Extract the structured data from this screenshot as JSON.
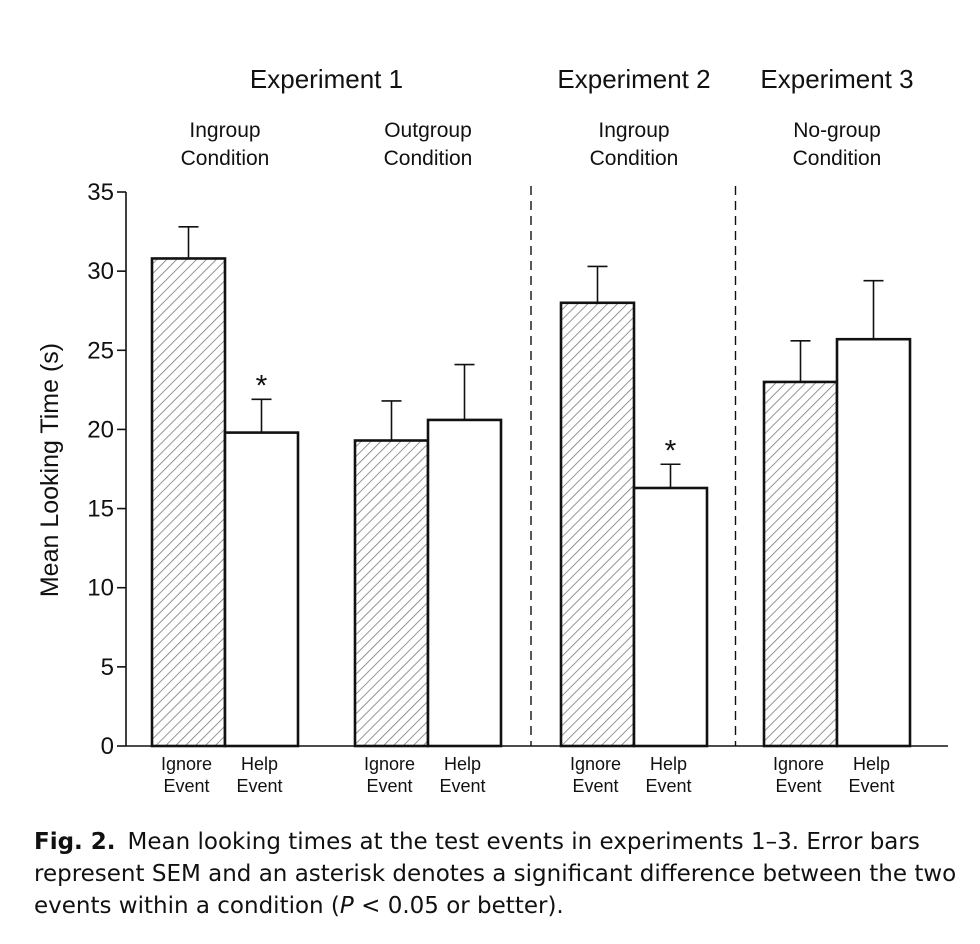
{
  "chart_data": {
    "type": "bar",
    "ylabel": "Mean Looking Time (s)",
    "ylim": [
      0,
      35
    ],
    "yticks": [
      "0",
      "5",
      "10",
      "15",
      "20",
      "25",
      "30",
      "35"
    ],
    "grid": false,
    "experiments": [
      {
        "label": "Experiment 1",
        "conditions": [
          0,
          1
        ]
      },
      {
        "label": "Experiment 2",
        "conditions": [
          2
        ]
      },
      {
        "label": "Experiment 3",
        "conditions": [
          3
        ]
      }
    ],
    "conditions": [
      {
        "line1": "Ingroup",
        "line2": "Condition"
      },
      {
        "line1": "Outgroup",
        "line2": "Condition"
      },
      {
        "line1": "Ingroup",
        "line2": "Condition"
      },
      {
        "line1": "No-group",
        "line2": "Condition"
      }
    ],
    "series": [
      {
        "event": [
          "Ignore",
          "Event"
        ],
        "fill": "hatched",
        "values": [
          30.8,
          19.3,
          28.0,
          23.0
        ],
        "sem": [
          2.0,
          2.5,
          2.3,
          2.6
        ]
      },
      {
        "event": [
          "Help",
          "Event"
        ],
        "fill": "white",
        "values": [
          19.8,
          20.6,
          16.3,
          25.7
        ],
        "sem": [
          2.1,
          3.5,
          1.5,
          3.7
        ]
      }
    ],
    "significance_marker": "*",
    "significant": [
      0,
      2
    ],
    "dividers_after_condition": [
      1,
      2
    ]
  },
  "caption": {
    "figure_label": "Fig. 2.",
    "text": "Mean looking times at the test events in experiments 1–3. Error bars represent SEM and an asterisk denotes a significant difference between the two events within a condition (",
    "italic": "P",
    "tail": " < 0.05 or better)."
  },
  "colors": {
    "ink": "#111111",
    "hatch": "#777777"
  }
}
